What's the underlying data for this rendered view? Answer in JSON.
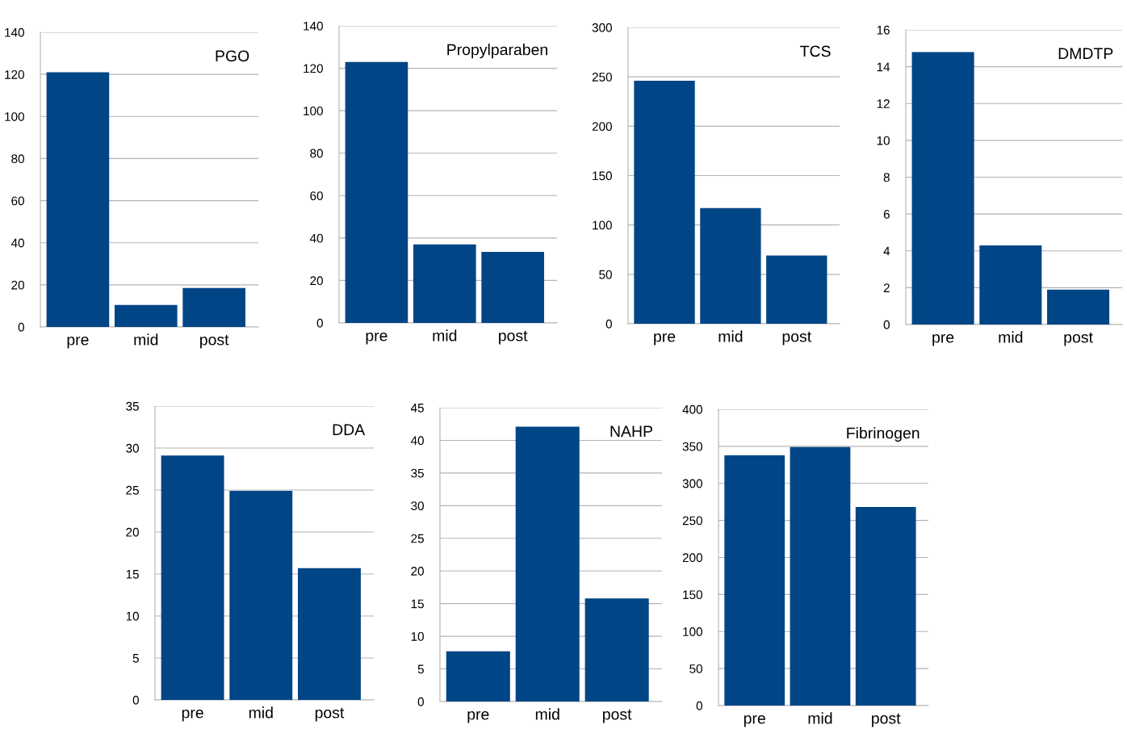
{
  "chart_data": [
    {
      "type": "bar",
      "title": "PGO",
      "categories": [
        "pre",
        "mid",
        "post"
      ],
      "values": [
        121,
        10.5,
        18.5
      ],
      "color": "#004586",
      "ylim": [
        0,
        140
      ],
      "yticks": [
        0,
        20,
        40,
        60,
        80,
        100,
        120,
        140
      ],
      "grid": "y"
    },
    {
      "type": "bar",
      "title": "Propylparaben",
      "categories": [
        "pre",
        "mid",
        "post"
      ],
      "values": [
        123,
        37,
        33.5
      ],
      "color": "#004586",
      "ylim": [
        0,
        140
      ],
      "yticks": [
        0,
        20,
        40,
        60,
        80,
        100,
        120,
        140
      ],
      "grid": "y"
    },
    {
      "type": "bar",
      "title": "TCS",
      "categories": [
        "pre",
        "mid",
        "post"
      ],
      "values": [
        246,
        117,
        69
      ],
      "color": "#004586",
      "ylim": [
        0,
        300
      ],
      "yticks": [
        0,
        50,
        100,
        150,
        200,
        250,
        300
      ],
      "grid": "y"
    },
    {
      "type": "bar",
      "title": "DMDTP",
      "categories": [
        "pre",
        "mid",
        "post"
      ],
      "values": [
        14.8,
        4.3,
        1.9
      ],
      "color": "#004586",
      "ylim": [
        0,
        16
      ],
      "yticks": [
        0,
        2,
        4,
        6,
        8,
        10,
        12,
        14,
        16
      ],
      "grid": "y"
    },
    {
      "type": "bar",
      "title": "DDA",
      "categories": [
        "pre",
        "mid",
        "post"
      ],
      "values": [
        29.1,
        24.9,
        15.7
      ],
      "color": "#004586",
      "ylim": [
        0,
        35
      ],
      "yticks": [
        0,
        5,
        10,
        15,
        20,
        25,
        30,
        35
      ],
      "grid": "y"
    },
    {
      "type": "bar",
      "title": "NAHP",
      "categories": [
        "pre",
        "mid",
        "post"
      ],
      "values": [
        7.7,
        42.1,
        15.8
      ],
      "color": "#004586",
      "ylim": [
        0,
        45
      ],
      "yticks": [
        0,
        5,
        10,
        15,
        20,
        25,
        30,
        35,
        40,
        45
      ],
      "grid": "y"
    },
    {
      "type": "bar",
      "title": "Fibrinogen",
      "categories": [
        "pre",
        "mid",
        "post"
      ],
      "values": [
        338,
        349,
        268
      ],
      "color": "#004586",
      "ylim": [
        0,
        400
      ],
      "yticks": [
        0,
        50,
        100,
        150,
        200,
        250,
        300,
        350,
        400
      ],
      "grid": "y"
    }
  ]
}
